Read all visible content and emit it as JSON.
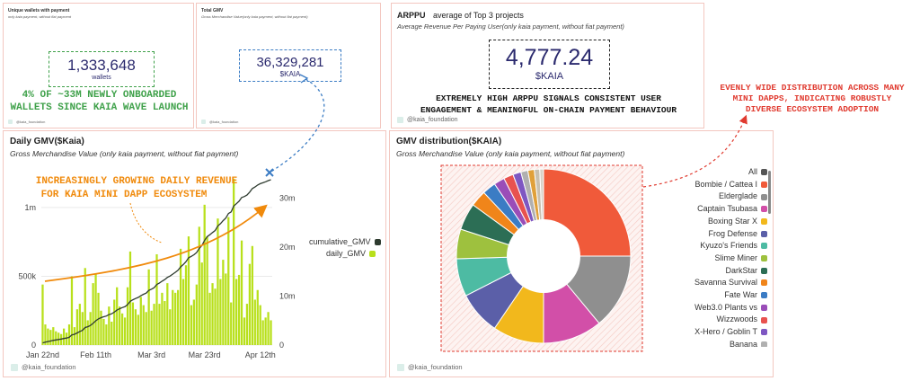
{
  "wallets_panel": {
    "title": "Unique wallets with payment",
    "subtitle": "only kaia payment, without fiat payment",
    "value": "1,333,648",
    "unit": "wallets",
    "annotation_line1": "4% OF ~33M NEWLY ONBOARDED",
    "annotation_line2": "WALLETS SINCE KAIA WAVE LAUNCH",
    "footer": "@kaia_foundation"
  },
  "gmv_panel": {
    "title": "Total GMV",
    "subtitle": "Gross Merchandise Value(only kaia payment, without fiat payment)",
    "value": "36,329,281",
    "unit": "$KAIA",
    "footer": "@kaia_foundation"
  },
  "arppu_panel": {
    "title": "ARPPU",
    "title_suffix": "average of Top 3 projects",
    "subtitle": "Average Revenue Per Paying User(only kaia payment, without fiat payment)",
    "value": "4,777.24",
    "unit": "$KAIA",
    "annotation_line1": "EXTREMELY HIGH ARPPU SIGNALS CONSISTENT USER",
    "annotation_line2": "ENGAGEMENT & MEANINGFUL ON-CHAIN PAYMENT BEHAVIOUR",
    "footer": "@kaia_foundation"
  },
  "distribution_annotation": {
    "line1": "EVENLY WIDE DISTRIBUTION ACROSS MANY",
    "line2": "MINI DAPPS, INDICATING ROBUSTLY",
    "line3": "DIVERSE ECOSYSTEM ADOPTION"
  },
  "daily_panel": {
    "title": "Daily GMV($Kaia)",
    "subtitle": "Gross Merchandise Value (only kaia payment, without fiat payment)",
    "annotation_line1": "INCREASINGLY GROWING DAILY REVENUE",
    "annotation_line2": "FOR KAIA MINI DAPP ECOSYSTEM",
    "footer": "@kaia_foundation",
    "legend": {
      "cumulative": "cumulative_GMV",
      "daily": "daily_GMV"
    }
  },
  "pie_panel": {
    "title": "GMV distribution($KAIA)",
    "subtitle": "Gross Merchandise Value (only kaia payment, without fiat payment)",
    "footer": "@kaia_foundation"
  },
  "colors": {
    "bar": "#b8e01b",
    "line": "#2e3b2f",
    "accent_orange": "#f08a0c",
    "accent_green": "#3fa14a",
    "accent_red": "#e03a2f",
    "accent_blue": "#3b7cc4",
    "kpi_navy": "#2b2a6e"
  },
  "chart_data": [
    {
      "type": "bar",
      "title": "Daily GMV($Kaia)",
      "x_ticks": [
        "Jan 22nd",
        "Feb 11th",
        "Mar 3rd",
        "Mar 23rd",
        "Apr 12th"
      ],
      "y_left_ticks": [
        "0",
        "500k",
        "1m"
      ],
      "y_right_ticks": [
        "0",
        "10m",
        "20m",
        "30m"
      ],
      "ylim_left": [
        0,
        1300000
      ],
      "ylim_right": [
        0,
        36500000
      ],
      "grid": true,
      "legend_position": "right",
      "series": [
        {
          "name": "daily_GMV",
          "kind": "bar",
          "axis": "left",
          "values": [
            440000,
            150000,
            120000,
            110000,
            130000,
            100000,
            90000,
            80000,
            120000,
            90000,
            150000,
            500000,
            130000,
            260000,
            300000,
            240000,
            560000,
            180000,
            240000,
            450000,
            520000,
            380000,
            250000,
            190000,
            150000,
            280000,
            170000,
            330000,
            420000,
            280000,
            230000,
            200000,
            420000,
            680000,
            310000,
            260000,
            220000,
            350000,
            290000,
            240000,
            550000,
            250000,
            300000,
            660000,
            300000,
            380000,
            320000,
            450000,
            260000,
            400000,
            380000,
            400000,
            700000,
            480000,
            580000,
            790000,
            290000,
            330000,
            440000,
            860000,
            600000,
            1020000,
            790000,
            380000,
            450000,
            410000,
            920000,
            480000,
            620000,
            520000,
            930000,
            310000,
            1210000,
            480000,
            510000,
            760000,
            200000,
            300000,
            590000,
            720000,
            330000,
            400000,
            290000,
            180000,
            200000,
            240000,
            180000
          ]
        },
        {
          "name": "cumulative_GMV",
          "kind": "line",
          "axis": "right",
          "values": [
            440000,
            590000,
            710000,
            820000,
            950000,
            1050000,
            1140000,
            1220000,
            1340000,
            1430000,
            1580000,
            2080000,
            2210000,
            2470000,
            2770000,
            3010000,
            3570000,
            3750000,
            3990000,
            4440000,
            4960000,
            5340000,
            5590000,
            5780000,
            5930000,
            6210000,
            6380000,
            6710000,
            7130000,
            7410000,
            7640000,
            7840000,
            8260000,
            8940000,
            9250000,
            9510000,
            9730000,
            10080000,
            10370000,
            10610000,
            11160000,
            11410000,
            11710000,
            12370000,
            12670000,
            13050000,
            13370000,
            13820000,
            14080000,
            14480000,
            14860000,
            15260000,
            15960000,
            16440000,
            17020000,
            17810000,
            18100000,
            18430000,
            18870000,
            19730000,
            20330000,
            21350000,
            22140000,
            22520000,
            22970000,
            23380000,
            24300000,
            24780000,
            25400000,
            25920000,
            26850000,
            27160000,
            28370000,
            28850000,
            29360000,
            30120000,
            30320000,
            30620000,
            31210000,
            31930000,
            32260000,
            32660000,
            32950000,
            33130000,
            33330000,
            33570000,
            33750000
          ]
        }
      ]
    },
    {
      "type": "pie",
      "title": "GMV distribution($KAIA)",
      "donut": true,
      "legend_position": "right",
      "legend": [
        "All",
        "Bombie / Cattea I",
        "Elderglade",
        "Captain Tsubasa",
        "Boxing Star X",
        "Frog Defense",
        "Kyuzo's Friends",
        "Slime Miner",
        "DarkStar",
        "Savanna Survival",
        "Fate War",
        "Web3.0 Plants vs",
        "Wizzwoods",
        "X-Hero / Goblin T",
        "Banana"
      ],
      "slices": [
        {
          "label": "Bombie / Cattea I",
          "value": 25.0,
          "color": "#f05a3a"
        },
        {
          "label": "Elderglade",
          "value": 14.0,
          "color": "#8f8f8f"
        },
        {
          "label": "Captain Tsubasa",
          "value": 11.0,
          "color": "#d24fa8"
        },
        {
          "label": "Boxing Star X",
          "value": 9.5,
          "color": "#f2b81c"
        },
        {
          "label": "Frog Defense",
          "value": 8.0,
          "color": "#5b5fa8"
        },
        {
          "label": "Kyuzo's Friends",
          "value": 7.0,
          "color": "#4dbba3"
        },
        {
          "label": "Slime Miner",
          "value": 5.5,
          "color": "#9ec13e"
        },
        {
          "label": "DarkStar",
          "value": 5.0,
          "color": "#2c6e55"
        },
        {
          "label": "Savanna Survival",
          "value": 3.0,
          "color": "#f0851a"
        },
        {
          "label": "Fate War",
          "value": 2.5,
          "color": "#3b7cc4"
        },
        {
          "label": "Web3.0 Plants vs",
          "value": 2.0,
          "color": "#9a4db8"
        },
        {
          "label": "Wizzwoods",
          "value": 1.8,
          "color": "#e8524f"
        },
        {
          "label": "X-Hero / Goblin T",
          "value": 1.5,
          "color": "#7e57c2"
        },
        {
          "label": "Banana",
          "value": 1.3,
          "color": "#b0b0b0"
        },
        {
          "label": "",
          "value": 1.2,
          "color": "#e0a03a"
        },
        {
          "label": "",
          "value": 1.0,
          "color": "#c8c0b0"
        },
        {
          "label": "",
          "value": 0.7,
          "color": "#d9d2c8"
        }
      ]
    }
  ]
}
